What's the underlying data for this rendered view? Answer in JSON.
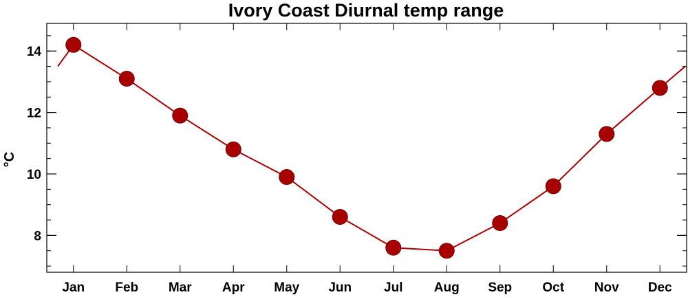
{
  "chart_data": {
    "type": "line",
    "title": "Ivory Coast Diurnal temp range",
    "xlabel": "",
    "ylabel": "°C",
    "categories": [
      "Jan",
      "Feb",
      "Mar",
      "Apr",
      "May",
      "Jun",
      "Jul",
      "Aug",
      "Sep",
      "Oct",
      "Nov",
      "Dec"
    ],
    "series": [
      {
        "values": [
          14.2,
          13.1,
          11.9,
          10.8,
          9.9,
          8.6,
          7.6,
          7.5,
          8.4,
          9.6,
          11.3,
          12.8
        ]
      }
    ],
    "ylim": [
      6.8,
      14.9
    ],
    "yticks": [
      8,
      10,
      12,
      14
    ],
    "ytick_labels": [
      "8",
      "10",
      "12",
      "14"
    ],
    "yminor_step": 0.5,
    "wrap_line_at_edges": true,
    "grid": false,
    "legend": "none",
    "colors": {
      "series": "#a80000",
      "axis": "#000000"
    }
  }
}
